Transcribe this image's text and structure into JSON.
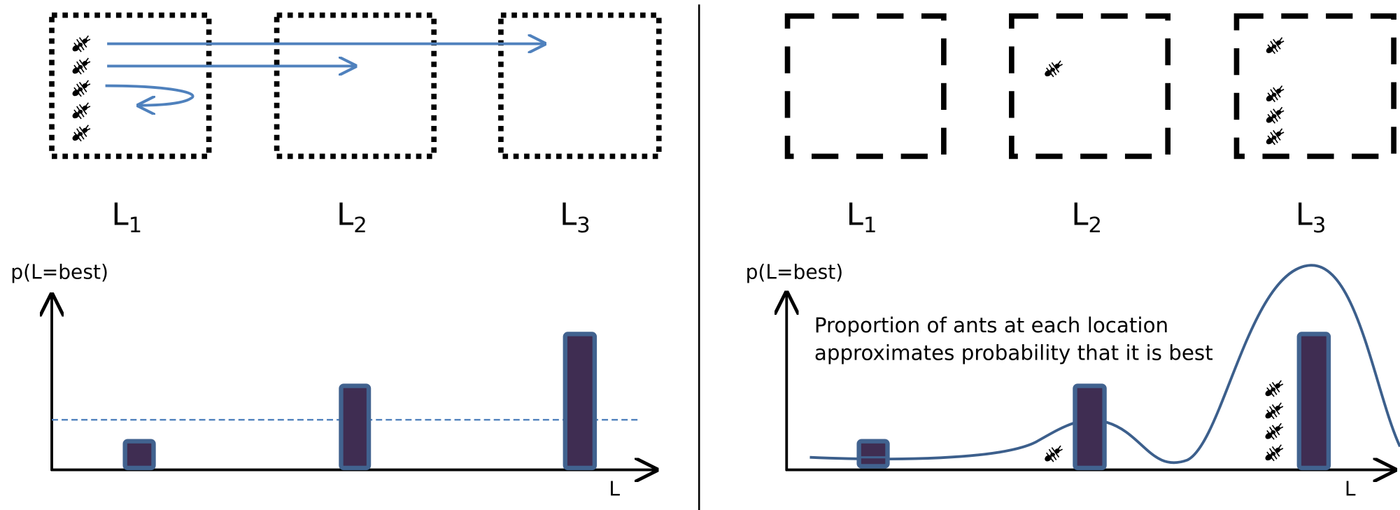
{
  "left_panel": {
    "locations": [
      {
        "label": "L",
        "subscript": "1"
      },
      {
        "label": "L",
        "subscript": "2"
      },
      {
        "label": "L",
        "subscript": "3"
      }
    ],
    "y_axis_label": "p(L=best)",
    "x_axis_label": "L"
  },
  "right_panel": {
    "locations": [
      {
        "label": "L",
        "subscript": "1"
      },
      {
        "label": "L",
        "subscript": "2"
      },
      {
        "label": "L",
        "subscript": "3"
      }
    ],
    "y_axis_label": "p(L=best)",
    "x_axis_label": "L",
    "annotation": [
      "Proportion of ants at each location",
      "approximates probability that it is best"
    ]
  }
}
